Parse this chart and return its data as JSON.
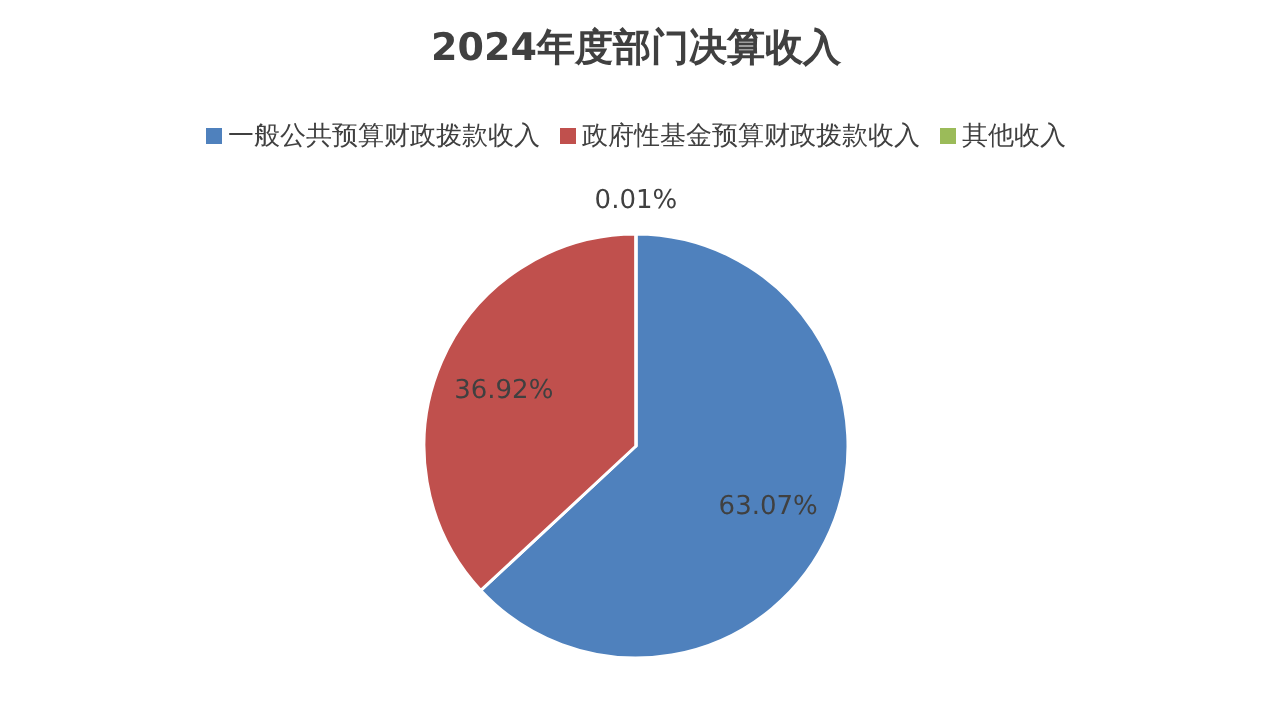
{
  "chart_data": {
    "type": "pie",
    "title": "2024年度部门决算收入",
    "categories": [
      "一般公共预算财政拨款收入",
      "政府性基金预算财政拨款收入",
      "其他收入"
    ],
    "values": [
      63.07,
      36.92,
      0.01
    ],
    "colors": [
      "#4f81bd",
      "#c0504d",
      "#9bbb59"
    ],
    "value_labels": [
      "63.07%",
      "36.92%",
      "0.01%"
    ],
    "legend": "top"
  }
}
